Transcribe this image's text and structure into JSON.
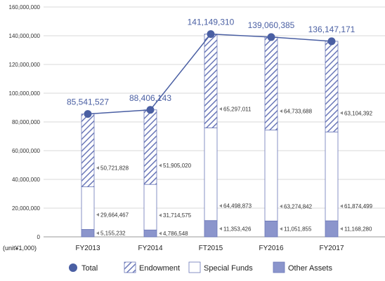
{
  "chart_data": {
    "type": "bar",
    "categories": [
      "FY2013",
      "FY2014",
      "FT2015",
      "FY2016",
      "FY2017"
    ],
    "unit_label": "(unit¥1,000)",
    "ylim": [
      0,
      160000000
    ],
    "yticks": [
      0,
      20000000,
      40000000,
      60000000,
      80000000,
      100000000,
      120000000,
      140000000,
      160000000
    ],
    "ytick_labels": [
      "0",
      "20,000,000",
      "40,000,000",
      "60,000,000",
      "80,000,000",
      "100,000,000",
      "120,000,000",
      "140,000,000",
      "160,000,000"
    ],
    "grid": true,
    "series": [
      {
        "name": "Other Assets",
        "values": [
          5155232,
          4786548,
          11353426,
          11051855,
          11168280
        ],
        "labels": [
          "5,155,232",
          "4,786,548",
          "11,353,426",
          "11,051,855",
          "11,168,280"
        ],
        "color": "#8b95cc",
        "pattern": "solid"
      },
      {
        "name": "Special Funds",
        "values": [
          29664467,
          31714575,
          64498873,
          63274842,
          61874499
        ],
        "labels": [
          "29,664,467",
          "31,714,575",
          "64,498,873",
          "63,274,842",
          "61,874,499"
        ],
        "color": "#ffffff",
        "pattern": "none"
      },
      {
        "name": "Endowment",
        "values": [
          50721828,
          51905020,
          65297011,
          64733688,
          63104392
        ],
        "labels": [
          "50,721,828",
          "51,905,020",
          "65,297,011",
          "64,733,688",
          "63,104,392"
        ],
        "color": "#6a77b8",
        "pattern": "hatch"
      }
    ],
    "total": {
      "name": "Total",
      "values": [
        85541527,
        88406143,
        141149310,
        139060385,
        136147171
      ],
      "labels": [
        "85,541,527",
        "88,406,143",
        "141,149,310",
        "139,060,385",
        "136,147,171"
      ],
      "color": "#4a5fa3",
      "type": "line"
    },
    "legend_position": "bottom",
    "legend": [
      "Total",
      "Endowment",
      "Special Funds",
      "Other Assets"
    ]
  }
}
